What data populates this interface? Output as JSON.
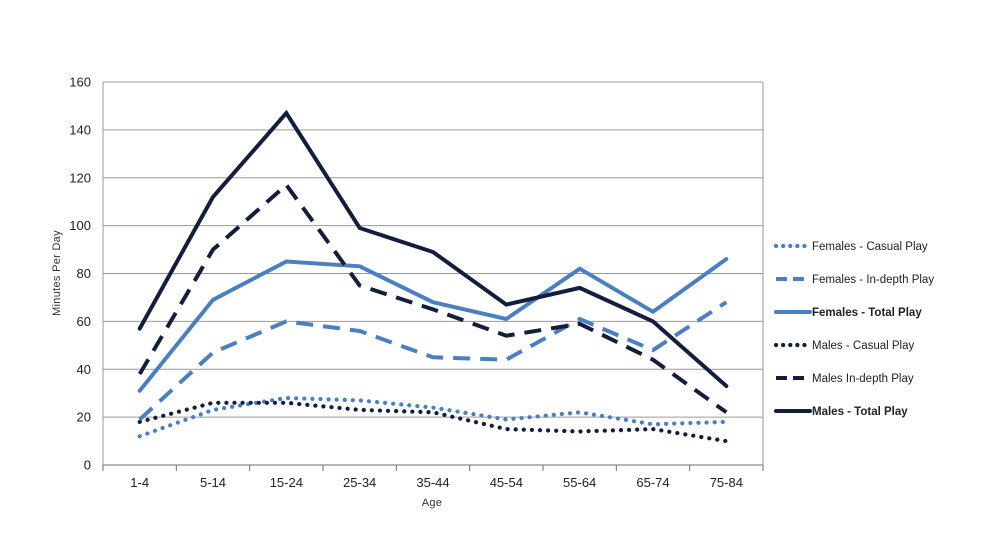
{
  "chart_data": {
    "type": "line",
    "title": "",
    "xlabel": "Age",
    "ylabel": "Minutes Per Day",
    "ylim": [
      0,
      160
    ],
    "yticks": [
      0,
      20,
      40,
      60,
      80,
      100,
      120,
      140,
      160
    ],
    "grid": true,
    "legend_position": "right",
    "categories": [
      "1-4",
      "5-14",
      "15-24",
      "25-34",
      "35-44",
      "45-54",
      "55-64",
      "65-74",
      "75-84"
    ],
    "series": [
      {
        "name": "Females - Casual Play",
        "style": "dotted",
        "color": "#4a7fc1",
        "bold": false,
        "values": [
          12,
          23,
          28,
          27,
          24,
          19,
          22,
          17,
          18
        ]
      },
      {
        "name": "Females - In-depth Play",
        "style": "dashed",
        "color": "#4a7fc1",
        "bold": false,
        "values": [
          19,
          47,
          60,
          56,
          45,
          44,
          61,
          48,
          68
        ]
      },
      {
        "name": "Females - Total Play",
        "style": "solid",
        "color": "#4a7fc1",
        "bold": true,
        "values": [
          31,
          69,
          85,
          83,
          68,
          61,
          82,
          64,
          86
        ]
      },
      {
        "name": "Males - Casual Play",
        "style": "dotted",
        "color": "#141e3c",
        "bold": false,
        "values": [
          18,
          26,
          26,
          23,
          22,
          15,
          14,
          15,
          10
        ]
      },
      {
        "name": "Males In-depth Play",
        "style": "dashed",
        "color": "#141e3c",
        "bold": false,
        "values": [
          38,
          90,
          117,
          75,
          65,
          54,
          59,
          44,
          22
        ]
      },
      {
        "name": "Males - Total Play",
        "style": "solid",
        "color": "#141e3c",
        "bold": true,
        "values": [
          57,
          112,
          147,
          99,
          89,
          67,
          74,
          60,
          33
        ]
      }
    ]
  }
}
